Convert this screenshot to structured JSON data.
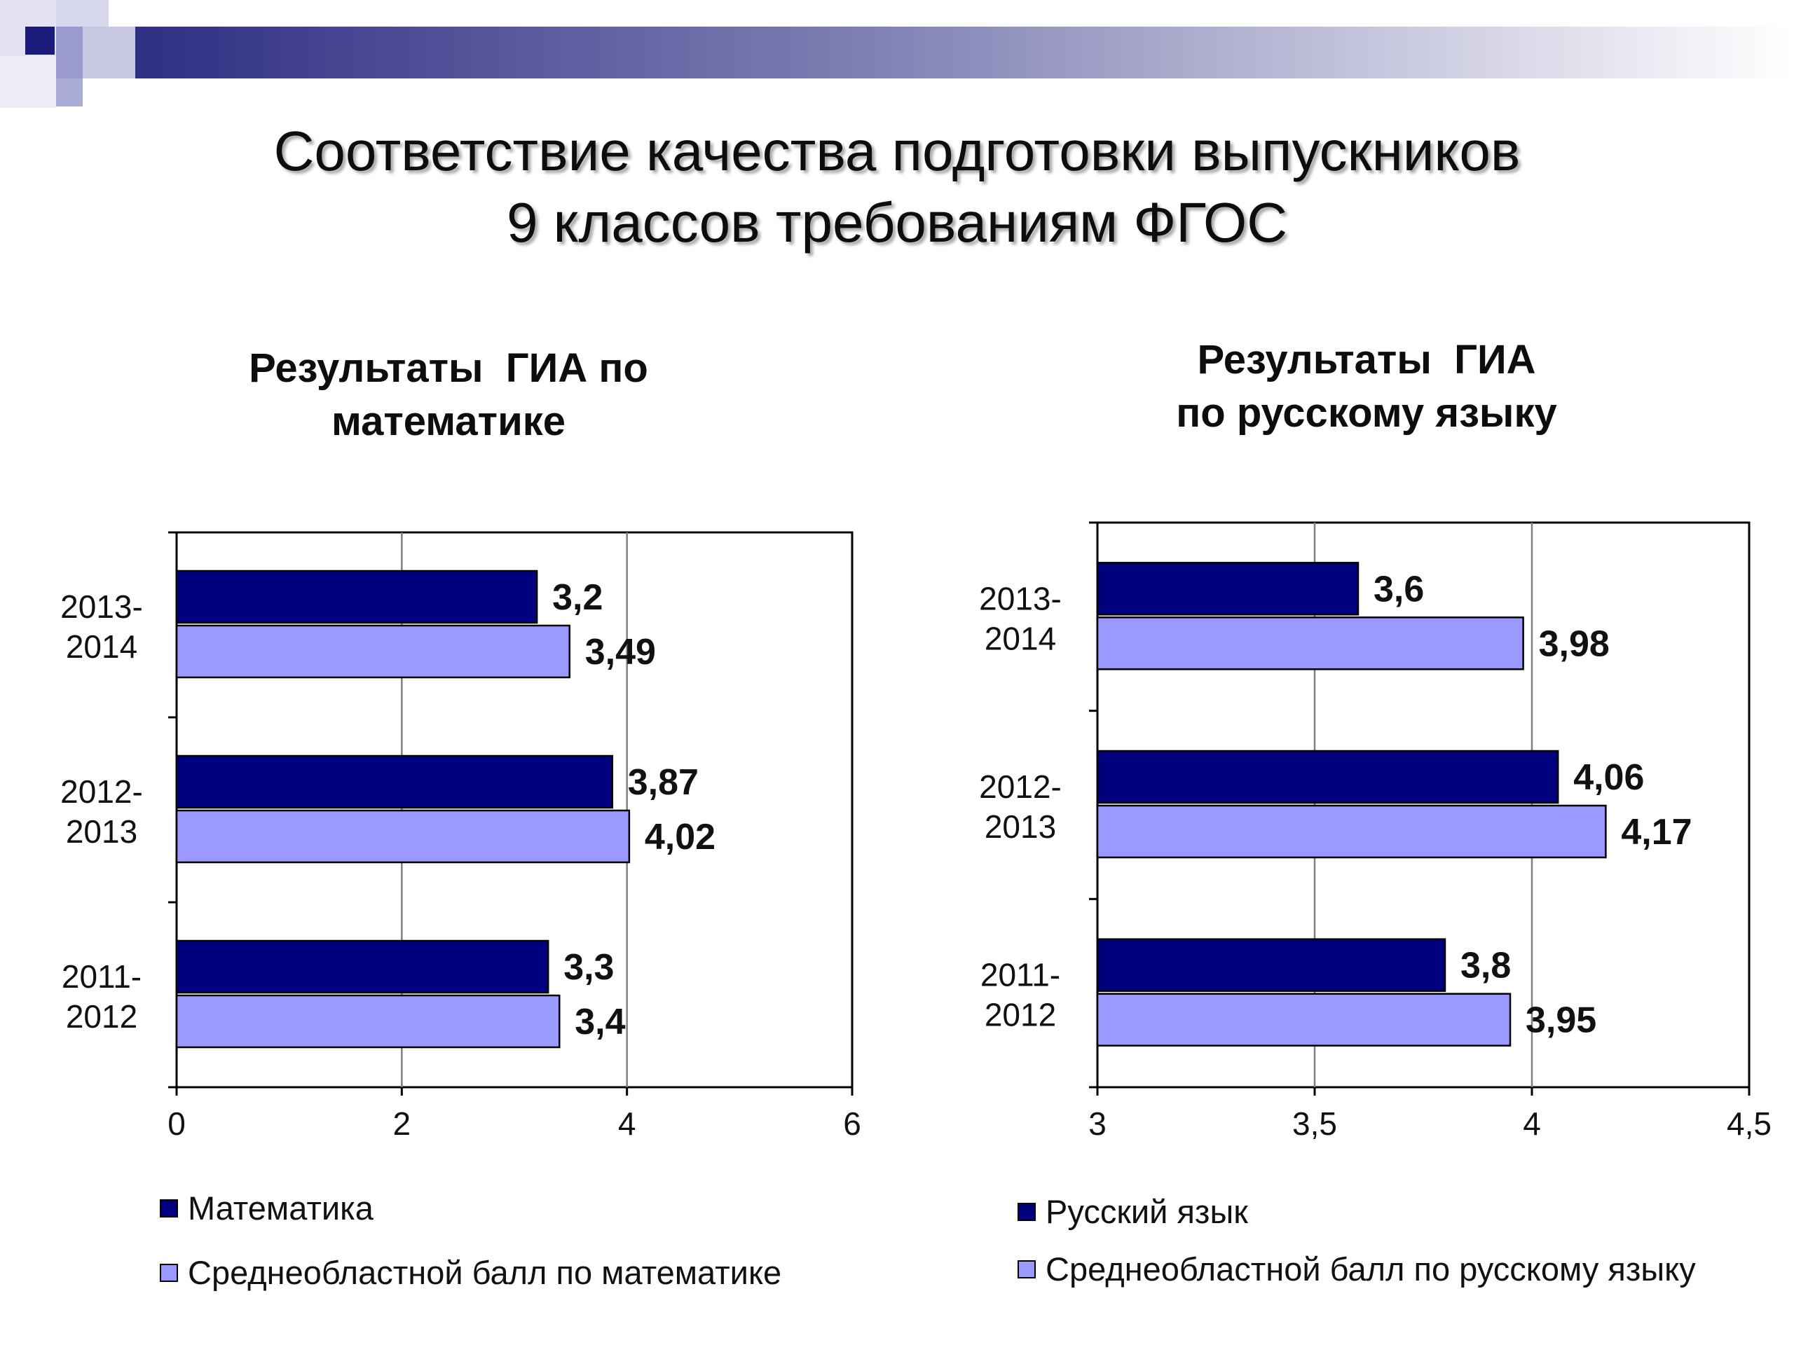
{
  "slide": {
    "title_line1": "Соответствие качества подготовки выпускников",
    "title_line2": "9 классов требованиям ФГОС"
  },
  "colors": {
    "dark_bar": "#00007e",
    "light_bar": "#9999ff",
    "gridline": "#808080",
    "header_dark": "#2b2b82"
  },
  "chart_data": [
    {
      "type": "bar",
      "orientation": "horizontal",
      "title_line1": "Результаты  ГИА по",
      "title_line2": "математике",
      "categories": [
        "2013-\n2014",
        "2012-\n2013",
        "2011-\n2012"
      ],
      "series": [
        {
          "name": "Математика",
          "values": [
            3.2,
            3.87,
            3.3
          ],
          "labels": [
            "3,2",
            "3,87",
            "3,3"
          ],
          "color": "#00007e"
        },
        {
          "name": "Среднеобластной балл по математике",
          "values": [
            3.49,
            4.02,
            3.4
          ],
          "labels": [
            "3,49",
            "4,02",
            "3,4"
          ],
          "color": "#9999ff"
        }
      ],
      "xlim": [
        0,
        6
      ],
      "xticks": [
        0,
        2,
        4,
        6
      ],
      "xtick_labels": [
        "0",
        "2",
        "4",
        "6"
      ],
      "grid": true,
      "legend_position": "bottom-left"
    },
    {
      "type": "bar",
      "orientation": "horizontal",
      "title_line1": "Результаты  ГИА",
      "title_line2": "по русскому языку",
      "categories": [
        "2013-\n2014",
        "2012-\n2013",
        "2011-\n2012"
      ],
      "series": [
        {
          "name": "Русский язык",
          "values": [
            3.6,
            4.06,
            3.8
          ],
          "labels": [
            "3,6",
            "4,06",
            "3,8"
          ],
          "color": "#00007e"
        },
        {
          "name": "Среднеобластной балл по русскому языку",
          "values": [
            3.98,
            4.17,
            3.95
          ],
          "labels": [
            "3,98",
            "4,17",
            "3,95"
          ],
          "color": "#9999ff"
        }
      ],
      "xlim": [
        3,
        4.5
      ],
      "xticks": [
        3,
        3.5,
        4,
        4.5
      ],
      "xtick_labels": [
        "3",
        "3,5",
        "4",
        "4,5"
      ],
      "grid": true,
      "legend_position": "bottom-left"
    }
  ]
}
